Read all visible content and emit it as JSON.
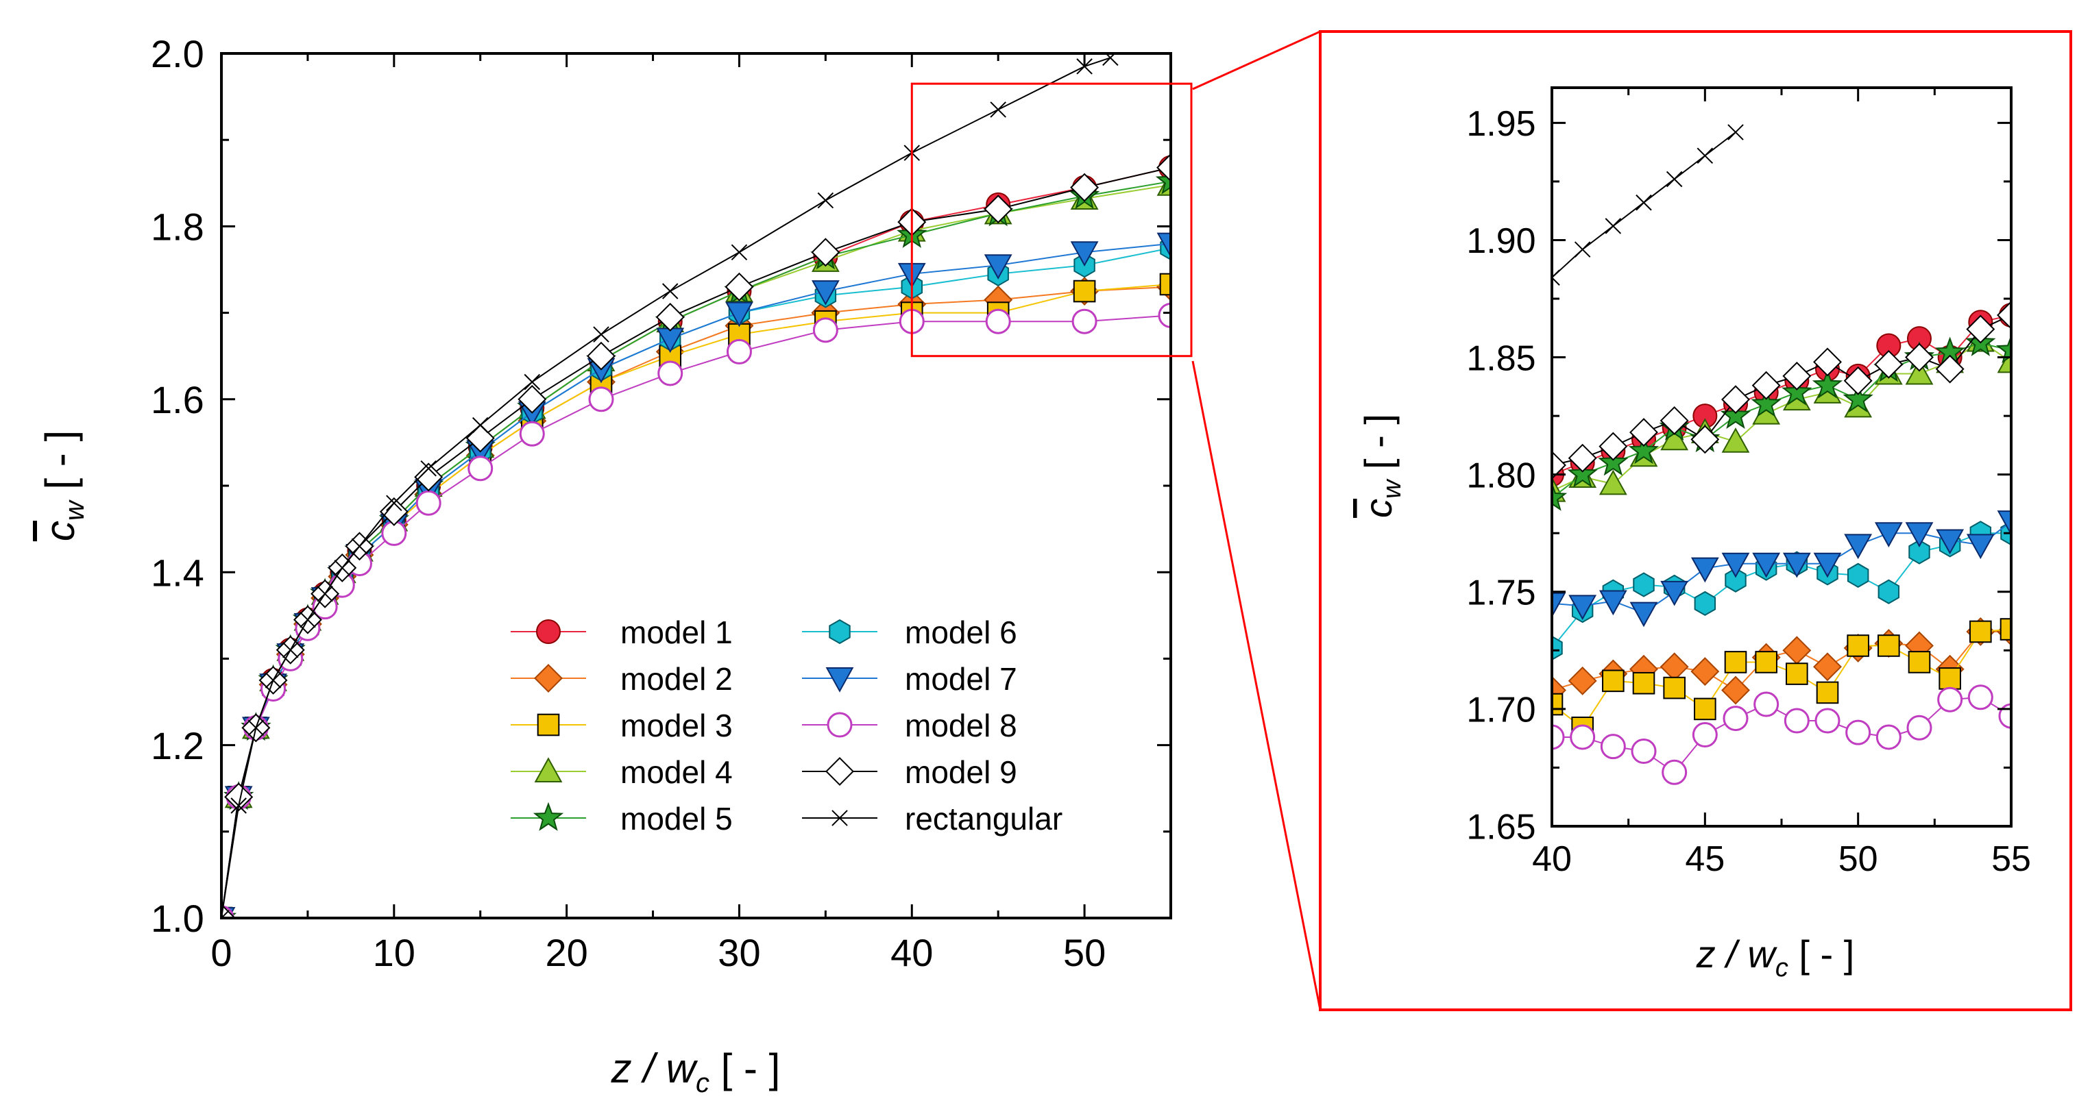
{
  "chart_data": [
    {
      "type": "line",
      "panel": "main",
      "xlabel": {
        "a": "z / w",
        "sub": "c",
        "b": " [ - ]"
      },
      "ylabel": {
        "a": "c",
        "sub": "w",
        "b": " [ - ]"
      },
      "xlim": [
        0,
        55
      ],
      "ylim": [
        1.0,
        2.0
      ],
      "xticks": [
        0,
        10,
        20,
        30,
        40,
        50
      ],
      "yticks": [
        1.0,
        1.2,
        1.4,
        1.6,
        1.8,
        2.0
      ],
      "xtick_labels": [
        "0",
        "10",
        "20",
        "30",
        "40",
        "50"
      ],
      "ytick_labels": [
        "1.0",
        "1.2",
        "1.4",
        "1.6",
        "1.8",
        "2.0"
      ],
      "zoom_region": {
        "x": [
          40,
          55
        ],
        "y": [
          1.65,
          1.965
        ]
      },
      "legend_position": "lower-right",
      "series": [
        {
          "name": "model 1",
          "marker": "circle",
          "fill": "#e8253d",
          "stroke": "#8b0000",
          "line": "#e8253d",
          "x": [
            0,
            1,
            2,
            3,
            4,
            5,
            6,
            7,
            8,
            10,
            12,
            15,
            18,
            22,
            26,
            30,
            35,
            40,
            45,
            50,
            55
          ],
          "y": [
            1.0,
            1.14,
            1.22,
            1.275,
            1.31,
            1.345,
            1.375,
            1.4,
            1.425,
            1.46,
            1.5,
            1.545,
            1.59,
            1.645,
            1.69,
            1.725,
            1.765,
            1.805,
            1.825,
            1.845,
            1.868
          ]
        },
        {
          "name": "model 2",
          "marker": "diamond",
          "fill": "#f47920",
          "stroke": "#a84400",
          "line": "#f47920",
          "x": [
            0,
            1,
            2,
            3,
            4,
            5,
            6,
            7,
            8,
            10,
            12,
            15,
            18,
            22,
            26,
            30,
            35,
            40,
            45,
            50,
            55
          ],
          "y": [
            1.0,
            1.14,
            1.22,
            1.27,
            1.305,
            1.34,
            1.37,
            1.395,
            1.42,
            1.455,
            1.49,
            1.535,
            1.575,
            1.62,
            1.655,
            1.685,
            1.7,
            1.71,
            1.715,
            1.725,
            1.73
          ]
        },
        {
          "name": "model 3",
          "marker": "square",
          "fill": "#f5c400",
          "stroke": "#000000",
          "line": "#f5c400",
          "x": [
            0,
            1,
            2,
            3,
            4,
            5,
            6,
            7,
            8,
            10,
            12,
            15,
            18,
            22,
            26,
            30,
            35,
            40,
            45,
            50,
            55
          ],
          "y": [
            1.0,
            1.14,
            1.22,
            1.27,
            1.305,
            1.34,
            1.37,
            1.395,
            1.42,
            1.455,
            1.49,
            1.535,
            1.575,
            1.62,
            1.65,
            1.675,
            1.69,
            1.7,
            1.7,
            1.725,
            1.733
          ]
        },
        {
          "name": "model 4",
          "marker": "triangle-up",
          "fill": "#9acd32",
          "stroke": "#2e5e00",
          "line": "#9acd32",
          "x": [
            0,
            1,
            2,
            3,
            4,
            5,
            6,
            7,
            8,
            10,
            12,
            15,
            18,
            22,
            26,
            30,
            35,
            40,
            45,
            50,
            55
          ],
          "y": [
            1.0,
            1.14,
            1.22,
            1.275,
            1.31,
            1.345,
            1.375,
            1.4,
            1.425,
            1.46,
            1.5,
            1.545,
            1.59,
            1.645,
            1.69,
            1.725,
            1.76,
            1.795,
            1.815,
            1.832,
            1.848
          ]
        },
        {
          "name": "model 5",
          "marker": "star",
          "fill": "#2ca02c",
          "stroke": "#0b4d0b",
          "line": "#2ca02c",
          "x": [
            0,
            1,
            2,
            3,
            4,
            5,
            6,
            7,
            8,
            10,
            12,
            15,
            18,
            22,
            26,
            30,
            35,
            40,
            45,
            50,
            55
          ],
          "y": [
            1.0,
            1.14,
            1.22,
            1.275,
            1.31,
            1.345,
            1.375,
            1.4,
            1.425,
            1.46,
            1.5,
            1.545,
            1.59,
            1.645,
            1.69,
            1.725,
            1.765,
            1.79,
            1.815,
            1.835,
            1.852
          ]
        },
        {
          "name": "model 6",
          "marker": "hexagon",
          "fill": "#17becf",
          "stroke": "#005f6b",
          "line": "#17becf",
          "x": [
            0,
            1,
            2,
            3,
            4,
            5,
            6,
            7,
            8,
            10,
            12,
            15,
            18,
            22,
            26,
            30,
            35,
            40,
            45,
            50,
            55
          ],
          "y": [
            1.0,
            1.14,
            1.22,
            1.27,
            1.305,
            1.34,
            1.37,
            1.395,
            1.42,
            1.455,
            1.495,
            1.54,
            1.585,
            1.635,
            1.67,
            1.7,
            1.72,
            1.73,
            1.745,
            1.755,
            1.775
          ]
        },
        {
          "name": "model 7",
          "marker": "triangle-down",
          "fill": "#1f77d4",
          "stroke": "#0a2a6b",
          "line": "#1f77d4",
          "x": [
            0,
            1,
            2,
            3,
            4,
            5,
            6,
            7,
            8,
            10,
            12,
            15,
            18,
            22,
            26,
            30,
            35,
            40,
            45,
            50,
            55
          ],
          "y": [
            1.0,
            1.14,
            1.22,
            1.27,
            1.305,
            1.34,
            1.37,
            1.395,
            1.42,
            1.455,
            1.495,
            1.54,
            1.585,
            1.635,
            1.67,
            1.7,
            1.725,
            1.745,
            1.755,
            1.77,
            1.78
          ]
        },
        {
          "name": "model 8",
          "marker": "circle-open",
          "fill": "#ffffff",
          "stroke": "#c03cc0",
          "line": "#c03cc0",
          "x": [
            0,
            1,
            2,
            3,
            4,
            5,
            6,
            7,
            8,
            10,
            12,
            15,
            18,
            22,
            26,
            30,
            35,
            40,
            45,
            50,
            55
          ],
          "y": [
            1.0,
            1.14,
            1.22,
            1.265,
            1.3,
            1.335,
            1.36,
            1.385,
            1.41,
            1.445,
            1.48,
            1.52,
            1.56,
            1.6,
            1.63,
            1.655,
            1.68,
            1.69,
            1.69,
            1.69,
            1.697
          ]
        },
        {
          "name": "model 9",
          "marker": "diamond-open",
          "fill": "#ffffff",
          "stroke": "#000000",
          "line": "#000000",
          "x": [
            0,
            1,
            2,
            3,
            4,
            5,
            6,
            7,
            8,
            10,
            12,
            15,
            18,
            22,
            26,
            30,
            35,
            40,
            45,
            50,
            55
          ],
          "y": [
            1.0,
            1.14,
            1.22,
            1.275,
            1.31,
            1.345,
            1.375,
            1.405,
            1.43,
            1.47,
            1.51,
            1.555,
            1.6,
            1.65,
            1.695,
            1.73,
            1.77,
            1.805,
            1.82,
            1.845,
            1.868
          ]
        },
        {
          "name": "rectangular",
          "marker": "x",
          "fill": "none",
          "stroke": "#000000",
          "line": "#000000",
          "x": [
            0,
            1,
            2,
            3,
            4,
            5,
            6,
            7,
            8,
            10,
            12,
            15,
            18,
            22,
            26,
            30,
            35,
            40,
            45,
            50,
            51.5
          ],
          "y": [
            1.0,
            1.13,
            1.22,
            1.275,
            1.31,
            1.345,
            1.375,
            1.405,
            1.43,
            1.48,
            1.52,
            1.57,
            1.62,
            1.675,
            1.725,
            1.77,
            1.83,
            1.885,
            1.935,
            1.985,
            1.995
          ]
        }
      ]
    },
    {
      "type": "line",
      "panel": "inset",
      "xlabel": {
        "a": "z / w",
        "sub": "c",
        "b": " [ - ]"
      },
      "ylabel": {
        "a": "c",
        "sub": "w",
        "b": " [ - ]"
      },
      "xlim": [
        40,
        55
      ],
      "ylim": [
        1.65,
        1.965
      ],
      "xticks": [
        40,
        45,
        50,
        55
      ],
      "yticks": [
        1.65,
        1.7,
        1.75,
        1.8,
        1.85,
        1.9,
        1.95
      ],
      "xtick_labels": [
        "40",
        "45",
        "50",
        "55"
      ],
      "ytick_labels": [
        "1.65",
        "1.70",
        "1.75",
        "1.80",
        "1.85",
        "1.90",
        "1.95"
      ],
      "series": [
        {
          "name": "model 1",
          "x": [
            40,
            41,
            42,
            43,
            44,
            45,
            46,
            47,
            48,
            49,
            50,
            51,
            52,
            53,
            54,
            55
          ],
          "y": [
            1.8,
            1.805,
            1.81,
            1.815,
            1.82,
            1.825,
            1.83,
            1.835,
            1.84,
            1.845,
            1.842,
            1.855,
            1.858,
            1.85,
            1.865,
            1.868
          ]
        },
        {
          "name": "model 2",
          "x": [
            40,
            41,
            42,
            43,
            44,
            45,
            46,
            47,
            48,
            49,
            50,
            51,
            52,
            53,
            54,
            55
          ],
          "y": [
            1.708,
            1.712,
            1.715,
            1.717,
            1.718,
            1.716,
            1.708,
            1.722,
            1.725,
            1.718,
            1.726,
            1.728,
            1.727,
            1.717,
            1.733,
            1.733
          ]
        },
        {
          "name": "model 3",
          "x": [
            40,
            41,
            42,
            43,
            44,
            45,
            46,
            47,
            48,
            49,
            50,
            51,
            52,
            53,
            54,
            55
          ],
          "y": [
            1.702,
            1.692,
            1.712,
            1.711,
            1.709,
            1.7,
            1.72,
            1.72,
            1.715,
            1.707,
            1.727,
            1.727,
            1.72,
            1.713,
            1.733,
            1.734
          ]
        },
        {
          "name": "model 4",
          "x": [
            40,
            41,
            42,
            43,
            44,
            45,
            46,
            47,
            48,
            49,
            50,
            51,
            52,
            53,
            54,
            55
          ],
          "y": [
            1.793,
            1.799,
            1.796,
            1.808,
            1.815,
            1.818,
            1.814,
            1.826,
            1.832,
            1.835,
            1.829,
            1.843,
            1.843,
            1.848,
            1.857,
            1.848
          ]
        },
        {
          "name": "model 5",
          "x": [
            40,
            41,
            42,
            43,
            44,
            45,
            46,
            47,
            48,
            49,
            50,
            51,
            52,
            53,
            54,
            55
          ],
          "y": [
            1.79,
            1.8,
            1.805,
            1.81,
            1.82,
            1.815,
            1.825,
            1.83,
            1.835,
            1.838,
            1.832,
            1.845,
            1.85,
            1.852,
            1.856,
            1.853
          ]
        },
        {
          "name": "model 6",
          "x": [
            40,
            41,
            42,
            43,
            44,
            45,
            46,
            47,
            48,
            49,
            50,
            51,
            52,
            53,
            54,
            55
          ],
          "y": [
            1.726,
            1.742,
            1.75,
            1.753,
            1.752,
            1.745,
            1.755,
            1.76,
            1.762,
            1.758,
            1.757,
            1.75,
            1.767,
            1.77,
            1.775,
            1.775
          ]
        },
        {
          "name": "model 7",
          "x": [
            40,
            41,
            42,
            43,
            44,
            45,
            46,
            47,
            48,
            49,
            50,
            51,
            52,
            53,
            54,
            55
          ],
          "y": [
            1.745,
            1.744,
            1.746,
            1.741,
            1.75,
            1.76,
            1.762,
            1.762,
            1.762,
            1.762,
            1.77,
            1.775,
            1.775,
            1.772,
            1.77,
            1.78
          ]
        },
        {
          "name": "model 8",
          "x": [
            40,
            41,
            42,
            43,
            44,
            45,
            46,
            47,
            48,
            49,
            50,
            51,
            52,
            53,
            54,
            55
          ],
          "y": [
            1.688,
            1.688,
            1.684,
            1.682,
            1.673,
            1.689,
            1.696,
            1.702,
            1.695,
            1.695,
            1.69,
            1.688,
            1.692,
            1.704,
            1.705,
            1.697
          ]
        },
        {
          "name": "model 9",
          "x": [
            40,
            41,
            42,
            43,
            44,
            45,
            46,
            47,
            48,
            49,
            50,
            51,
            52,
            53,
            54,
            55
          ],
          "y": [
            1.804,
            1.807,
            1.812,
            1.818,
            1.823,
            1.815,
            1.832,
            1.838,
            1.842,
            1.848,
            1.84,
            1.847,
            1.85,
            1.845,
            1.862,
            1.868
          ]
        },
        {
          "name": "rectangular",
          "x": [
            40,
            41,
            42,
            43,
            44,
            45,
            46
          ],
          "y": [
            1.884,
            1.896,
            1.906,
            1.916,
            1.926,
            1.936,
            1.946
          ]
        }
      ]
    }
  ]
}
